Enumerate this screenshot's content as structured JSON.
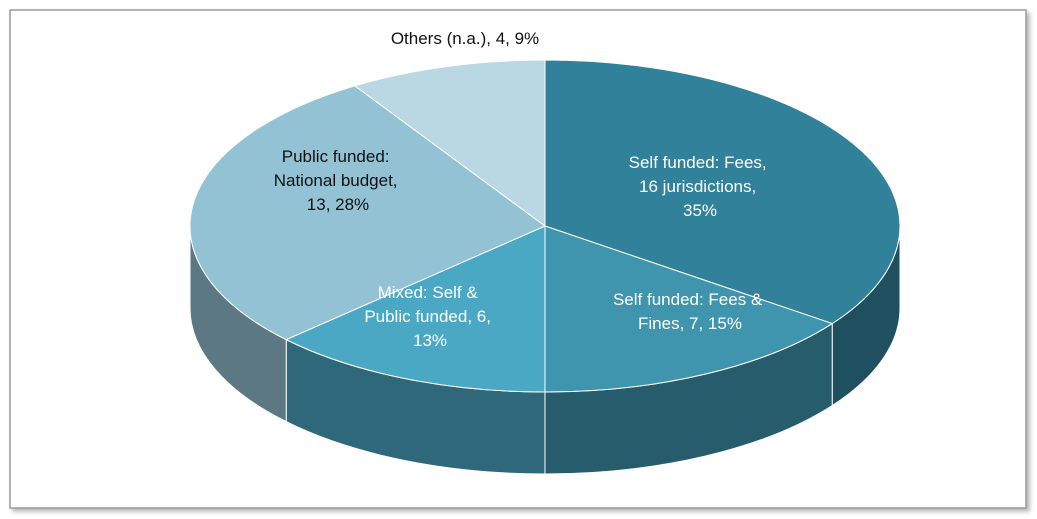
{
  "chart_data": {
    "type": "pie",
    "values": [
      35,
      15,
      13,
      28,
      9
    ],
    "value_labels": [
      "Self funded: Fees, 16 jurisdictions, 35%",
      "Self funded: Fees & Fines, 7, 15%",
      "Mixed: Self & Public funded, 6, 13%",
      "Public funded: National budget, 13, 28%",
      "Others (n.a.), 4, 9%"
    ],
    "colors": [
      "#31819a",
      "#3e95ad",
      "#4aa8c5",
      "#93c2d4",
      "#b9d8e3"
    ]
  }
}
